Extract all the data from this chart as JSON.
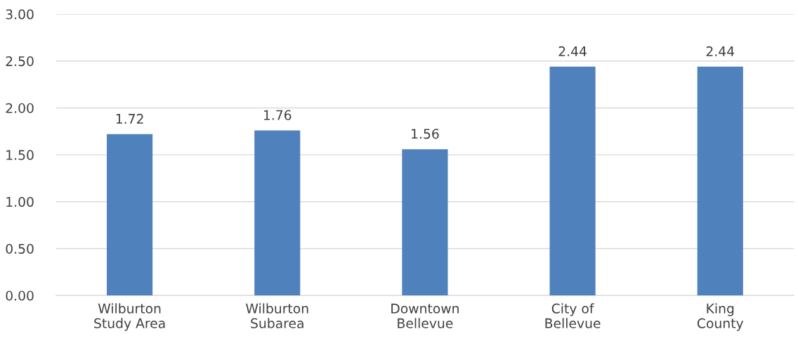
{
  "chart_data": {
    "type": "bar",
    "categories": [
      "Wilburton\nStudy Area",
      "Wilburton\nSubarea",
      "Downtown\nBellevue",
      "City of\nBellevue",
      "King\nCounty"
    ],
    "values": [
      1.72,
      1.76,
      1.56,
      2.44,
      2.44
    ],
    "color": "#4f81bd",
    "ylim": [
      0,
      3
    ],
    "yticks": [
      {
        "value": 0,
        "label": "0.00"
      },
      {
        "value": 0.5,
        "label": "0.50"
      },
      {
        "value": 1,
        "label": "1.00"
      },
      {
        "value": 1.5,
        "label": "1.50"
      },
      {
        "value": 2,
        "label": "2.00"
      },
      {
        "value": 2.5,
        "label": "2.50"
      },
      {
        "value": 3,
        "label": "3.00"
      }
    ],
    "grid": "y",
    "data_labels": true
  }
}
